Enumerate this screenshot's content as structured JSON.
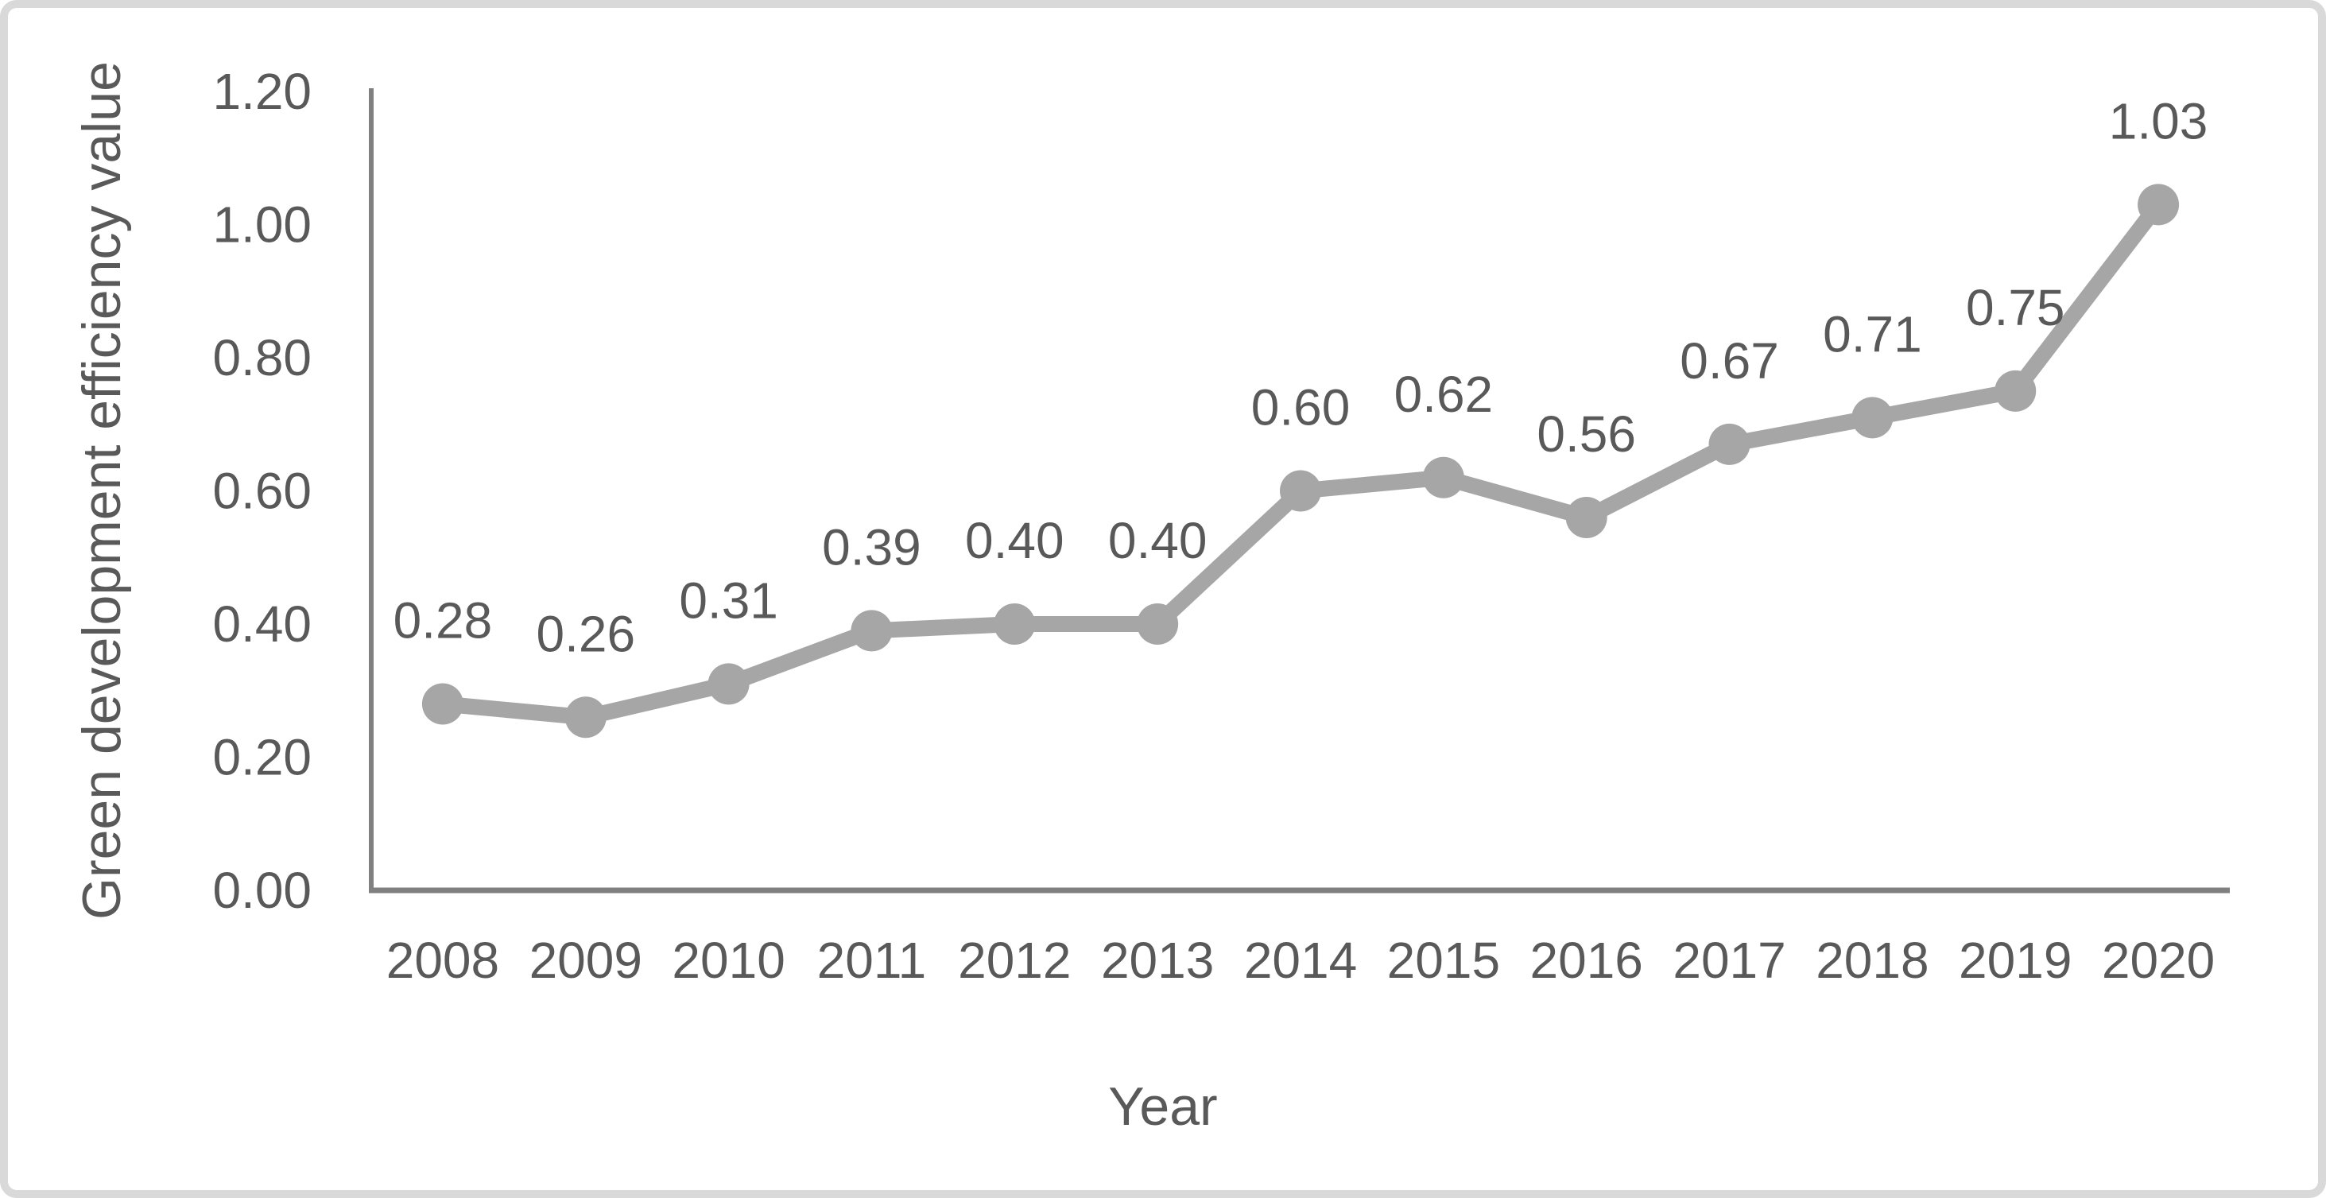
{
  "chart_data": {
    "type": "line",
    "title": "",
    "categories": [
      "2008",
      "2009",
      "2010",
      "2011",
      "2012",
      "2013",
      "2014",
      "2015",
      "2016",
      "2017",
      "2018",
      "2019",
      "2020"
    ],
    "series": [
      {
        "name": "Green development efficiency value",
        "values": [
          0.28,
          0.26,
          0.31,
          0.39,
          0.4,
          0.4,
          0.6,
          0.62,
          0.56,
          0.67,
          0.71,
          0.75,
          1.03
        ],
        "point_labels": [
          "0.28",
          "0.26",
          "0.31",
          "0.39",
          "0.40",
          "0.40",
          "0.60",
          "0.62",
          "0.56",
          "0.67",
          "0.71",
          "0.75",
          "1.03"
        ]
      }
    ],
    "xlabel": "Year",
    "ylabel": "Green development efficiency value",
    "ylim": [
      0,
      1.2
    ],
    "yticks": [
      "0.00",
      "0.20",
      "0.40",
      "0.60",
      "0.80",
      "1.00",
      "1.20"
    ],
    "grid": "off",
    "legend": "none",
    "marker": "circle",
    "colors": {
      "series": "#a6a6a6",
      "axis": "#808080",
      "text": "#595959",
      "frame_border": "#d9d9d9",
      "background": "#ffffff"
    }
  }
}
